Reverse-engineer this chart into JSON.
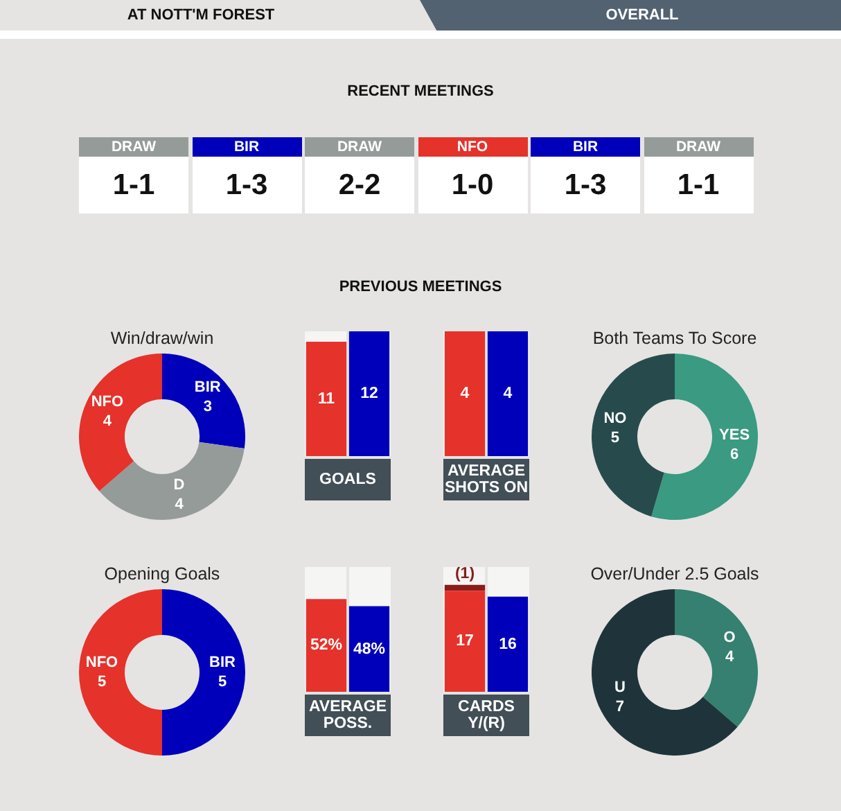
{
  "chart_data": [
    {
      "type": "other",
      "title": "RECENT MEETINGS",
      "annotations": [
        "AT NOTT'M FOREST",
        "OVERALL",
        "PREVIOUS MEETINGS"
      ],
      "categories": [
        "DRAW",
        "BIR",
        "DRAW",
        "NFO",
        "BIR",
        "DRAW"
      ],
      "colors": [
        "#959b98",
        "#0000bb",
        "#959b98",
        "#e5322b",
        "#0000bb",
        "#959b98"
      ],
      "value_labels": [
        "1-1",
        "1-3",
        "2-2",
        "1-0",
        "1-3",
        "1-1"
      ]
    },
    {
      "type": "donut",
      "title": "Win/draw/win",
      "categories": [
        "BIR",
        "D",
        "NFO"
      ],
      "values": [
        3,
        4,
        4
      ],
      "colors": [
        "#0000bb",
        "#959b98",
        "#e5322b"
      ],
      "data_labels": true
    },
    {
      "type": "bar",
      "xlabel": "GOALS",
      "categories": [
        null,
        null
      ],
      "values": [
        11,
        12
      ],
      "colors": [
        "#e5322b",
        "#0000bb"
      ],
      "ylim": [
        0,
        12
      ],
      "data_labels": true
    },
    {
      "type": "bar",
      "xlabel": "AVERAGE SHOTS ON",
      "categories": [
        null,
        null
      ],
      "values": [
        4,
        4
      ],
      "colors": [
        "#e5322b",
        "#0000bb"
      ],
      "ylim": [
        0,
        4
      ],
      "data_labels": true
    },
    {
      "type": "donut",
      "title": "Both Teams To Score",
      "categories": [
        "YES",
        "NO"
      ],
      "values": [
        6,
        5
      ],
      "colors": [
        "#3a9a82",
        "#274b4c"
      ],
      "data_labels": true
    },
    {
      "type": "donut",
      "title": "Opening Goals",
      "categories": [
        "BIR",
        "NFO"
      ],
      "values": [
        5,
        5
      ],
      "colors": [
        "#0000bb",
        "#e5322b"
      ],
      "data_labels": true
    },
    {
      "type": "bar",
      "xlabel": "AVERAGE POSS.",
      "categories": [
        null,
        null
      ],
      "values": [
        52,
        48
      ],
      "value_labels": [
        "52%",
        "48%"
      ],
      "colors": [
        "#e5322b",
        "#0000bb"
      ],
      "ylim": [
        0,
        70
      ]
    },
    {
      "type": "bar",
      "xlabel": "CARDS Y/(R)",
      "categories": [
        null,
        null
      ],
      "stacked": true,
      "ylim": [
        0,
        21
      ],
      "series": [
        {
          "colors": [
            "#e5322b",
            "#0000bb"
          ],
          "values": [
            17,
            16
          ],
          "value_labels": [
            "17",
            "16"
          ]
        },
        {
          "colors": [
            "#8a1c1c",
            "#8a1c1c"
          ],
          "values": [
            1,
            null
          ],
          "value_labels": [
            "(1)",
            null
          ]
        }
      ]
    },
    {
      "type": "donut",
      "title": "Over/Under 2.5 Goals",
      "categories": [
        "O",
        "U"
      ],
      "values": [
        4,
        7
      ],
      "colors": [
        "#358070",
        "#1f343a"
      ],
      "data_labels": true
    }
  ]
}
